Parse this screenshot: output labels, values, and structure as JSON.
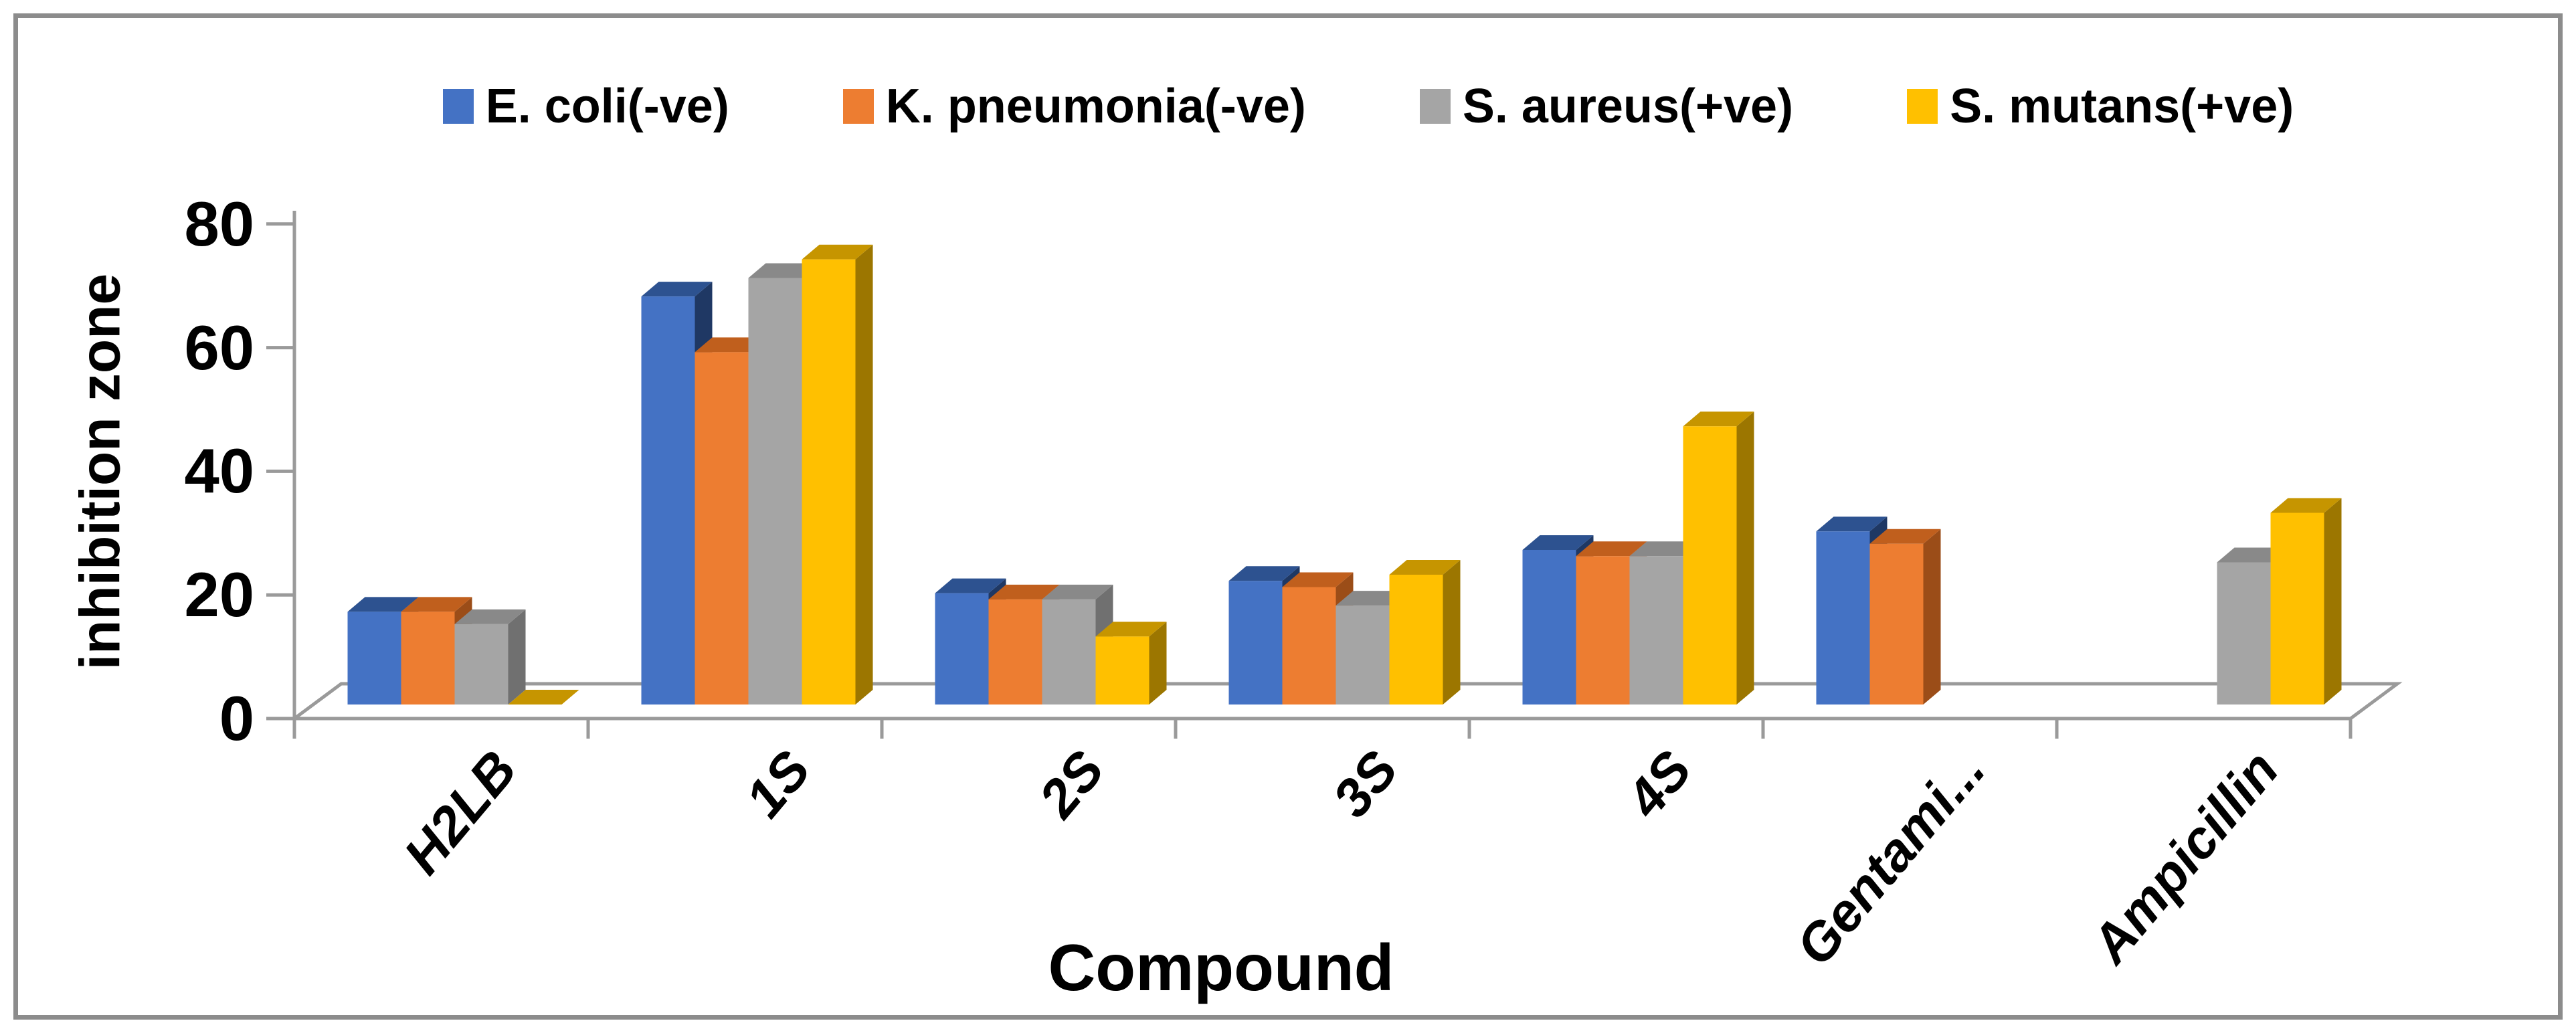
{
  "figure": {
    "background": "#FFFFFF",
    "border_color": "#8C8C8C",
    "axis_color": "#9A9A9A",
    "text_color": "#000000"
  },
  "legend": {
    "position": "top",
    "items": [
      {
        "label": "E. coli(-ve)",
        "color": "#4472C4"
      },
      {
        "label": "K. pneumonia(-ve)",
        "color": "#ED7D31"
      },
      {
        "label": "S. aureus(+ve)",
        "color": "#A5A5A5"
      },
      {
        "label": "S. mutans(+ve)",
        "color": "#FFC000"
      }
    ]
  },
  "y_axis": {
    "title": "inhibition zone",
    "ticks": [
      0,
      20,
      40,
      60,
      80
    ],
    "min": 0,
    "max": 80
  },
  "x_axis": {
    "title": "Compound",
    "categories": [
      "H2LB",
      "1S",
      "2S",
      "3S",
      "4S",
      "Gentami...",
      "Ampicillin"
    ]
  },
  "chart_data": {
    "type": "bar",
    "style": "3d-clustered",
    "title": "",
    "xlabel": "Compound",
    "ylabel": "inhibition zone",
    "ylim": [
      0,
      80
    ],
    "grid": false,
    "legend_position": "top",
    "categories": [
      "H2LB",
      "1S",
      "2S",
      "3S",
      "4S",
      "Gentami...",
      "Ampicillin"
    ],
    "series": [
      {
        "name": "E. coli(-ve)",
        "color": "#4472C4",
        "color_top": "#2D5290",
        "color_side": "#1F3864",
        "values": [
          15,
          66,
          18,
          20,
          25,
          28,
          null
        ]
      },
      {
        "name": "K. pneumonia(-ve)",
        "color": "#ED7D31",
        "color_top": "#C05F1D",
        "color_side": "#9B4D18",
        "values": [
          15,
          57,
          17,
          19,
          24,
          26,
          null
        ]
      },
      {
        "name": "S. aureus(+ve)",
        "color": "#A5A5A5",
        "color_top": "#898989",
        "color_side": "#707070",
        "values": [
          13,
          69,
          17,
          16,
          24,
          null,
          23
        ]
      },
      {
        "name": "S. mutans(+ve)",
        "color": "#FFC000",
        "color_top": "#C69500",
        "color_side": "#9C7600",
        "values": [
          0,
          72,
          11,
          21,
          45,
          null,
          31
        ]
      }
    ],
    "note_zero_vs_missing": "0 renders as a flat pad on the floor; null means no bar"
  }
}
